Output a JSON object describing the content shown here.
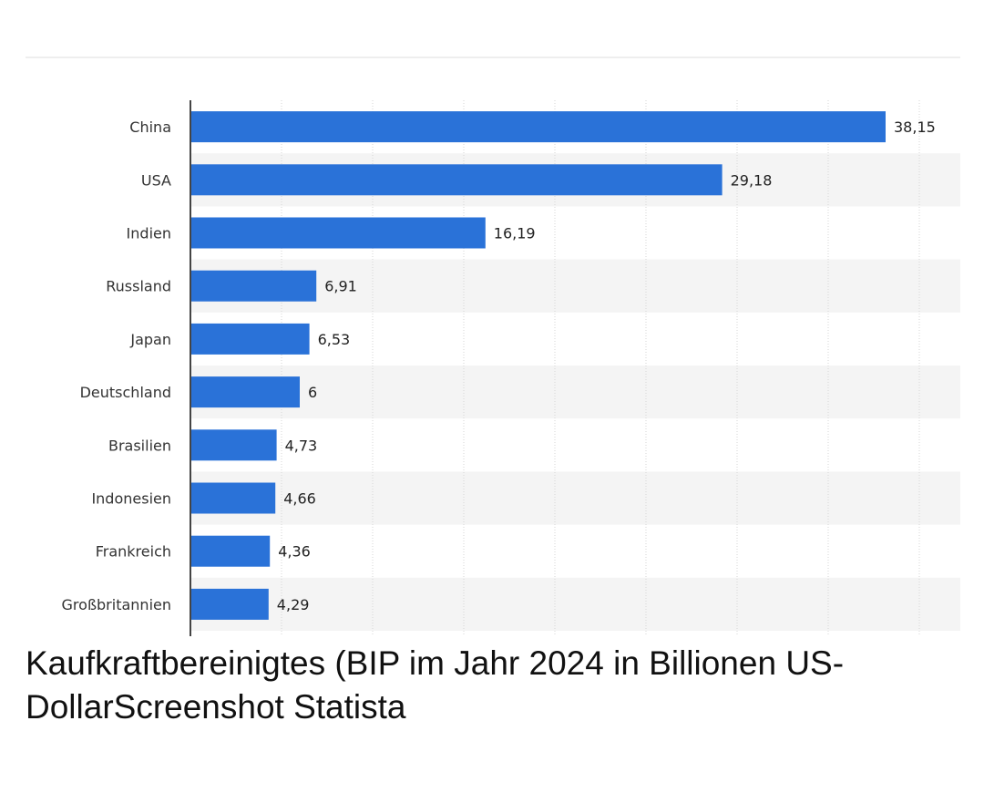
{
  "chart_data": {
    "type": "bar",
    "orientation": "horizontal",
    "categories": [
      "China",
      "USA",
      "Indien",
      "Russland",
      "Japan",
      "Deutschland",
      "Brasilien",
      "Indonesien",
      "Frankreich",
      "Großbritannien"
    ],
    "values": [
      38.15,
      29.18,
      16.19,
      6.91,
      6.53,
      6,
      4.73,
      4.66,
      4.36,
      4.29
    ],
    "value_labels": [
      "38,15",
      "29,18",
      "16,19",
      "6,91",
      "6,53",
      "6",
      "4,73",
      "4,66",
      "4,36",
      "4,29"
    ],
    "xlim": [
      0,
      40
    ],
    "grid_step": 5,
    "grid": true,
    "title": "",
    "xlabel": "",
    "ylabel": "",
    "bar_color": "#2a72d8",
    "band_color": "#f4f4f4"
  },
  "caption": {
    "line1": "Kaufkraftbereinigtes (BIP im Jahr 2024 in Billionen US-",
    "line2": "DollarScreenshot Statista"
  }
}
